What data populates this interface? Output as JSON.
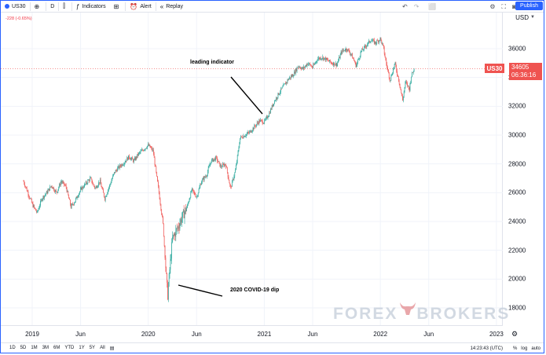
{
  "toolbar": {
    "symbol": "US30",
    "interval": "D",
    "indicators_label": "Indicators",
    "alert_label": "Alert",
    "replay_label": "Replay",
    "publish_label": "Publish"
  },
  "legend": {
    "change": "-228 (-0.65%)"
  },
  "currency": "USD",
  "price": {
    "symbol_tag": "US30",
    "last": "34605",
    "countdown": "06:36:16"
  },
  "y_axis": {
    "ticks": [
      {
        "label": "36000",
        "v": 36000
      },
      {
        "label": "34000",
        "v": 34000
      },
      {
        "label": "32000",
        "v": 32000
      },
      {
        "label": "30000",
        "v": 30000
      },
      {
        "label": "28000",
        "v": 28000
      },
      {
        "label": "26000",
        "v": 26000
      },
      {
        "label": "24000",
        "v": 24000
      },
      {
        "label": "22000",
        "v": 22000
      },
      {
        "label": "20000",
        "v": 20000
      },
      {
        "label": "18000",
        "v": 18000
      }
    ]
  },
  "x_axis": {
    "ticks": [
      {
        "label": "2019",
        "m": 0
      },
      {
        "label": "Jun",
        "m": 5
      },
      {
        "label": "2020",
        "m": 12
      },
      {
        "label": "Jun",
        "m": 17
      },
      {
        "label": "2021",
        "m": 24
      },
      {
        "label": "Jun",
        "m": 29
      },
      {
        "label": "2022",
        "m": 36
      },
      {
        "label": "Jun",
        "m": 41
      },
      {
        "label": "2023",
        "m": 48
      }
    ]
  },
  "annotations": {
    "leading": "leading indicator",
    "covid": "2020 COVID-19 dip"
  },
  "bottom": {
    "ranges": [
      "1D",
      "5D",
      "1M",
      "3M",
      "6M",
      "YTD",
      "1Y",
      "5Y",
      "All"
    ],
    "time": "14:23:43 (UTC)",
    "pct": "%",
    "log": "log",
    "auto": "auto"
  },
  "watermark": {
    "left": "FOREX",
    "right": "BROKERS"
  },
  "colors": {
    "up": "#26a69a",
    "down": "#ef5350",
    "accent": "#2962ff"
  },
  "chart_data": {
    "type": "line",
    "title": "",
    "xlabel": "",
    "ylabel": "",
    "ylim": [
      17400,
      37300
    ],
    "note_x_units": "months since Dec 2018",
    "series": [
      {
        "name": "US30",
        "x": [
          -0.9,
          0,
          0.5,
          1,
          1.5,
          2,
          2.5,
          3,
          3.5,
          4,
          4.4,
          5,
          5.5,
          6,
          6.5,
          7,
          7.5,
          8,
          8.5,
          9,
          9.5,
          10,
          10.5,
          11,
          11.5,
          12,
          12.5,
          13,
          13.5,
          14.0,
          14.2,
          14.5,
          15,
          15.5,
          16,
          16.5,
          17,
          17.5,
          18,
          18.5,
          19,
          19.5,
          20,
          20.5,
          21,
          21.5,
          22,
          22.5,
          23,
          23.5,
          24,
          24.5,
          25,
          25.5,
          26,
          26.5,
          27,
          27.5,
          28,
          28.5,
          29,
          29.5,
          30,
          30.5,
          31,
          31.5,
          32,
          32.5,
          33,
          33.5,
          34,
          34.5,
          35,
          35.5,
          36,
          36.3,
          36.6,
          37,
          37.5,
          38,
          38.3,
          38.6,
          39,
          39.2,
          39.5
        ],
        "values": [
          26800,
          25200,
          24600,
          25600,
          26000,
          26500,
          26000,
          26800,
          26400,
          25000,
          25400,
          26200,
          26600,
          27000,
          26300,
          26800,
          25600,
          26500,
          27400,
          27800,
          28100,
          28500,
          28200,
          28700,
          29000,
          29300,
          28900,
          26500,
          24000,
          18800,
          20500,
          22800,
          23500,
          24300,
          25000,
          26200,
          25700,
          26800,
          27200,
          28200,
          28400,
          27800,
          28000,
          26300,
          27500,
          29800,
          30000,
          30200,
          30600,
          31000,
          30900,
          31500,
          32300,
          32900,
          33400,
          33900,
          34200,
          34800,
          34600,
          35000,
          34700,
          35300,
          35400,
          35200,
          35000,
          34900,
          35800,
          36000,
          35600,
          34800,
          35800,
          36200,
          36600,
          36400,
          36700,
          36100,
          35000,
          33800,
          35000,
          33500,
          32400,
          33700,
          33200,
          34100,
          34605
        ]
      }
    ]
  }
}
